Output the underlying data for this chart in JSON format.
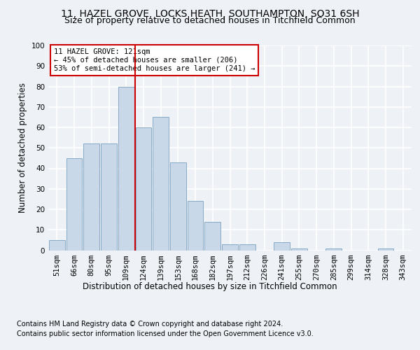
{
  "title_line1": "11, HAZEL GROVE, LOCKS HEATH, SOUTHAMPTON, SO31 6SH",
  "title_line2": "Size of property relative to detached houses in Titchfield Common",
  "xlabel": "Distribution of detached houses by size in Titchfield Common",
  "ylabel": "Number of detached properties",
  "categories": [
    "51sqm",
    "66sqm",
    "80sqm",
    "95sqm",
    "109sqm",
    "124sqm",
    "139sqm",
    "153sqm",
    "168sqm",
    "182sqm",
    "197sqm",
    "212sqm",
    "226sqm",
    "241sqm",
    "255sqm",
    "270sqm",
    "285sqm",
    "299sqm",
    "314sqm",
    "328sqm",
    "343sqm"
  ],
  "values": [
    5,
    45,
    52,
    52,
    80,
    60,
    65,
    43,
    24,
    14,
    3,
    3,
    0,
    4,
    1,
    0,
    1,
    0,
    0,
    1,
    0
  ],
  "bar_color": "#c8d8e8",
  "bar_edge_color": "#7aa0c0",
  "reference_line_color": "#cc0000",
  "annotation_text": "11 HAZEL GROVE: 121sqm\n← 45% of detached houses are smaller (206)\n53% of semi-detached houses are larger (241) →",
  "annotation_box_color": "#ffffff",
  "annotation_box_edge_color": "#cc0000",
  "ylim": [
    0,
    100
  ],
  "yticks": [
    0,
    10,
    20,
    30,
    40,
    50,
    60,
    70,
    80,
    90,
    100
  ],
  "footer_line1": "Contains HM Land Registry data © Crown copyright and database right 2024.",
  "footer_line2": "Contains public sector information licensed under the Open Government Licence v3.0.",
  "bg_color": "#eef2f7",
  "plot_bg_color": "#eef2f7",
  "grid_color": "#ffffff",
  "title_fontsize": 10,
  "subtitle_fontsize": 9,
  "axis_label_fontsize": 8.5,
  "tick_fontsize": 7.5,
  "footer_fontsize": 7
}
